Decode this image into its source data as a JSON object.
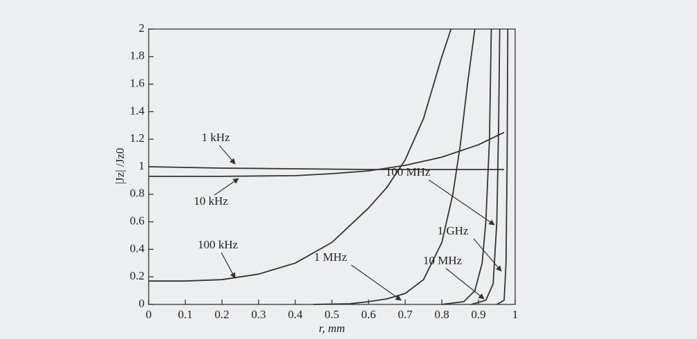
{
  "chart_data": {
    "type": "line",
    "xlabel": "r, mm",
    "ylabel": "|Jz| /Jz0",
    "xlim": [
      0,
      1
    ],
    "ylim": [
      0,
      2
    ],
    "xticks": [
      0,
      0.1,
      0.2,
      0.3,
      0.4,
      0.5,
      0.6,
      0.7,
      0.8,
      0.9,
      1
    ],
    "yticks": [
      0,
      0.2,
      0.4,
      0.6,
      0.8,
      1,
      1.2,
      1.4,
      1.6,
      1.8,
      2
    ],
    "series": [
      {
        "name": "1 kHz",
        "color": "#333333",
        "x": [
          0,
          0.2,
          0.4,
          0.6,
          0.8,
          0.97
        ],
        "values": [
          1.0,
          0.99,
          0.985,
          0.98,
          0.98,
          0.98
        ]
      },
      {
        "name": "10 kHz",
        "color": "#333333",
        "x": [
          0,
          0.2,
          0.4,
          0.5,
          0.6,
          0.7,
          0.8,
          0.9,
          0.97
        ],
        "values": [
          0.93,
          0.93,
          0.935,
          0.95,
          0.97,
          1.01,
          1.07,
          1.16,
          1.25
        ]
      },
      {
        "name": "100 kHz",
        "color": "#333333",
        "x": [
          0,
          0.1,
          0.2,
          0.3,
          0.4,
          0.5,
          0.6,
          0.65,
          0.7,
          0.75,
          0.8,
          0.825
        ],
        "values": [
          0.17,
          0.17,
          0.18,
          0.22,
          0.3,
          0.45,
          0.7,
          0.85,
          1.05,
          1.35,
          1.8,
          2.0
        ]
      },
      {
        "name": "1 MHz",
        "color": "#333333",
        "x": [
          0.45,
          0.55,
          0.6,
          0.65,
          0.7,
          0.75,
          0.8,
          0.83,
          0.85,
          0.87,
          0.89
        ],
        "values": [
          0,
          0.005,
          0.02,
          0.04,
          0.08,
          0.18,
          0.45,
          0.8,
          1.15,
          1.6,
          2.0
        ]
      },
      {
        "name": "10 MHz",
        "color": "#333333",
        "x": [
          0.8,
          0.86,
          0.89,
          0.91,
          0.92,
          0.93,
          0.935
        ],
        "values": [
          0,
          0.02,
          0.1,
          0.3,
          0.6,
          1.2,
          2.0
        ]
      },
      {
        "name": "100 MHz",
        "color": "#333333",
        "x": [
          0.88,
          0.92,
          0.94,
          0.95,
          0.955,
          0.958
        ],
        "values": [
          0,
          0.03,
          0.15,
          0.6,
          1.3,
          2.0
        ]
      },
      {
        "name": "1 GHz",
        "color": "#333333",
        "x": [
          0.95,
          0.97,
          0.975,
          0.978,
          0.98
        ],
        "values": [
          0,
          0.03,
          0.3,
          1.0,
          2.0
        ]
      }
    ]
  }
}
